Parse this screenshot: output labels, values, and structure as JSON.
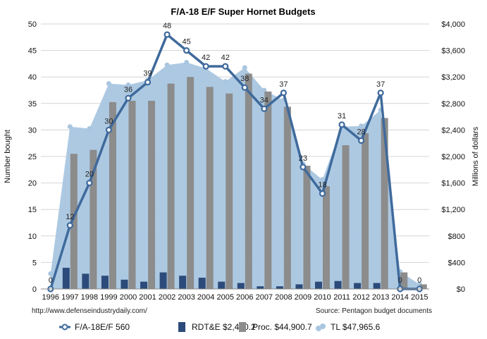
{
  "chart_data": {
    "type": "bar",
    "title": "F/A-18 E/F Super Hornet Budgets",
    "ylabel": "Number bought",
    "y2label": "Millions of dollars",
    "categories": [
      "1996",
      "1997",
      "1998",
      "1999",
      "2000",
      "2001",
      "2002",
      "2003",
      "2004",
      "2005",
      "2006",
      "2007",
      "2008",
      "2009",
      "2010",
      "2011",
      "2012",
      "2013",
      "2014",
      "2015"
    ],
    "ylim": [
      0,
      50
    ],
    "yticks": [
      "0",
      "5",
      "10",
      "15",
      "20",
      "25",
      "30",
      "35",
      "40",
      "45",
      "50"
    ],
    "y2lim": [
      0,
      4000
    ],
    "y2ticks": [
      "$0",
      "$400",
      "$800",
      "$1,200",
      "$1,600",
      "$2,000",
      "$2,400",
      "$2,800",
      "$3,200",
      "$3,600",
      "$4,000"
    ],
    "grid": true,
    "legend_position": "bottom",
    "series": [
      {
        "name": "TL $47,965.6",
        "kind": "area",
        "axis": "right",
        "color": "#a9c6e0",
        "values": [
          230,
          2450,
          2420,
          3100,
          3080,
          3150,
          3380,
          3420,
          3330,
          3130,
          3340,
          3000,
          2850,
          1890,
          1650,
          2450,
          2460,
          2700,
          260,
          70
        ]
      },
      {
        "name": "Proc. $44,900.7",
        "kind": "bar",
        "axis": "right",
        "color": "#8c8c8c",
        "values": [
          0,
          2040,
          2100,
          2820,
          2840,
          2840,
          3100,
          3200,
          3050,
          2950,
          3250,
          2980,
          2750,
          1860,
          1550,
          2170,
          2350,
          2580,
          250,
          70
        ]
      },
      {
        "name": "RDT&E $2,460.2",
        "kind": "bar",
        "axis": "right",
        "color": "#2c4b7a",
        "values": [
          0,
          320,
          230,
          200,
          140,
          110,
          250,
          200,
          170,
          110,
          90,
          40,
          40,
          70,
          110,
          120,
          90,
          90,
          0,
          0
        ]
      },
      {
        "name": "F/A-18E/F 560",
        "kind": "line",
        "axis": "left",
        "color": "#3f6a9c",
        "values": [
          0,
          12,
          20,
          30,
          36,
          39,
          48,
          45,
          42,
          42,
          38,
          34,
          37,
          23,
          18,
          31,
          28,
          37,
          0,
          0
        ]
      }
    ]
  },
  "footer": {
    "source_url": "http://www.defenseindustrydaily.com/",
    "source_note": "Source: Pentagon budget documents"
  }
}
